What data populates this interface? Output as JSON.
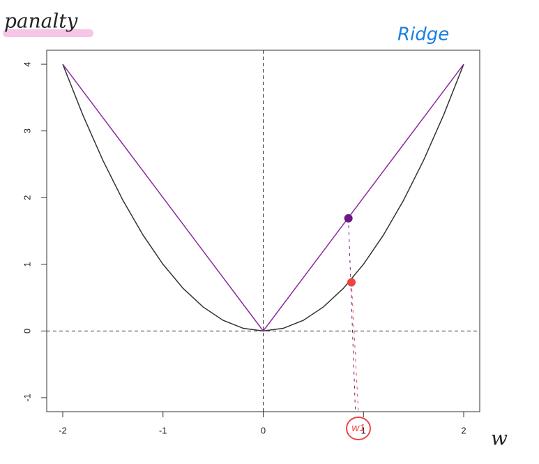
{
  "chart_data": {
    "type": "line",
    "title": "panalty",
    "xlabel": "w",
    "annotations": [
      "Ridge"
    ],
    "x": [
      -2,
      -1.8,
      -1.6,
      -1.4,
      -1.2,
      -1,
      -0.8,
      -0.6,
      -0.4,
      -0.2,
      0,
      0.2,
      0.4,
      0.6,
      0.8,
      1,
      1.2,
      1.4,
      1.6,
      1.8,
      2
    ],
    "series": [
      {
        "color": "#333333",
        "values": [
          4,
          3.24,
          2.56,
          1.96,
          1.44,
          1,
          0.64,
          0.36,
          0.16,
          0.04,
          0,
          0.04,
          0.16,
          0.36,
          0.64,
          1,
          1.44,
          1.96,
          2.56,
          3.24,
          4
        ]
      },
      {
        "color": "#8a2aa0",
        "values": [
          4,
          3.6,
          3.2,
          2.8,
          2.4,
          2,
          1.6,
          1.2,
          0.8,
          0.4,
          0,
          0.4,
          0.8,
          1.2,
          1.6,
          2,
          2.4,
          2.8,
          3.2,
          3.6,
          4
        ]
      }
    ],
    "points": [
      {
        "x": 0.85,
        "y": 1.69,
        "color": "#6a1a80"
      },
      {
        "x": 0.88,
        "y": 0.73,
        "color": "#ee4444",
        "label": "w1"
      }
    ],
    "hlines": [
      0
    ],
    "vlines": [
      0
    ],
    "xlim": [
      -2.16,
      2.16
    ],
    "xticks": [
      -2,
      -1,
      0,
      1,
      2
    ],
    "ylim": [
      -1.21,
      4.21
    ],
    "yticks": [
      -1,
      0,
      1,
      2,
      3,
      4
    ]
  }
}
